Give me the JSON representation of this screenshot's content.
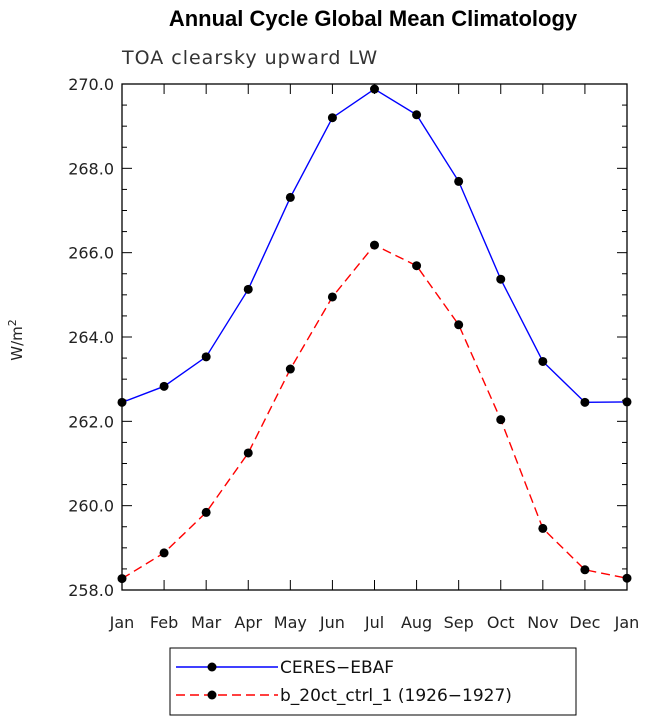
{
  "chart_data": {
    "type": "line",
    "title": "Annual Cycle Global Mean Climatology",
    "subtitle": "TOA clearsky upward LW",
    "ylabel_base": "W/m",
    "ylabel_sup": "2",
    "categories": [
      "Jan",
      "Feb",
      "Mar",
      "Apr",
      "May",
      "Jun",
      "Jul",
      "Aug",
      "Sep",
      "Oct",
      "Nov",
      "Dec",
      "Jan"
    ],
    "ylim": [
      258.0,
      270.0
    ],
    "yticks": [
      "258.0",
      "260.0",
      "262.0",
      "264.0",
      "266.0",
      "268.0",
      "270.0"
    ],
    "legend_position": "bottom-center",
    "series": [
      {
        "name": "CERES−EBAF",
        "color": "#0000ff",
        "dash": "solid",
        "values": [
          262.45,
          262.83,
          263.53,
          265.13,
          267.31,
          269.2,
          269.88,
          269.27,
          267.69,
          265.37,
          263.42,
          262.45,
          262.46
        ]
      },
      {
        "name": "b_20ct_ctrl_1 (1926−1927)",
        "color": "#ff0000",
        "dash": "dashed",
        "values": [
          258.27,
          258.88,
          259.84,
          261.25,
          263.24,
          264.95,
          266.18,
          265.69,
          264.29,
          262.04,
          259.46,
          258.48,
          258.28
        ]
      }
    ]
  }
}
